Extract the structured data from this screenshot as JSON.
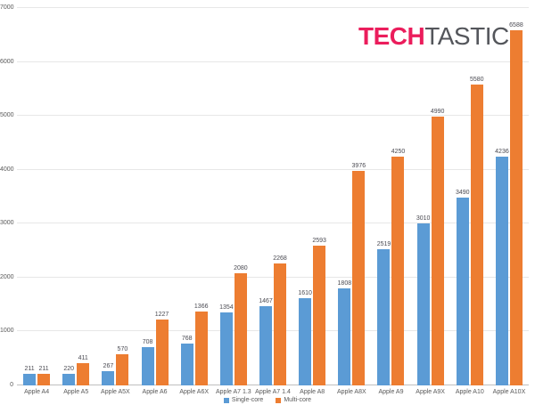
{
  "logo": {
    "part1": "TECH",
    "part2": "TASTIC",
    "part1_color": "#EB1D5C",
    "part2_color": "#54565B"
  },
  "chart_data": {
    "type": "bar",
    "title": "",
    "xlabel": "",
    "ylabel": "",
    "ylim": [
      0,
      7000
    ],
    "ytick_step": 1000,
    "grid": true,
    "legend_position": "bottom",
    "data_labels": true,
    "categories": [
      "Apple A4",
      "Apple A5",
      "Apple A5X",
      "Apple A6",
      "Apple A6X",
      "Apple A7 1.3",
      "Apple A7 1.4",
      "Apple A8",
      "Apple A8X",
      "Apple A9",
      "Apple A9X",
      "Apple A10",
      "Apple A10X"
    ],
    "series": [
      {
        "name": "Single-core",
        "color": "#5B9BD5",
        "values": [
          211,
          220,
          267,
          708,
          768,
          1354,
          1467,
          1610,
          1808,
          2519,
          3010,
          3490,
          4236
        ]
      },
      {
        "name": "Multi-core",
        "color": "#ED7D31",
        "values": [
          211,
          411,
          570,
          1227,
          1366,
          2080,
          2268,
          2593,
          3976,
          4250,
          4990,
          5580,
          6588
        ]
      }
    ]
  }
}
